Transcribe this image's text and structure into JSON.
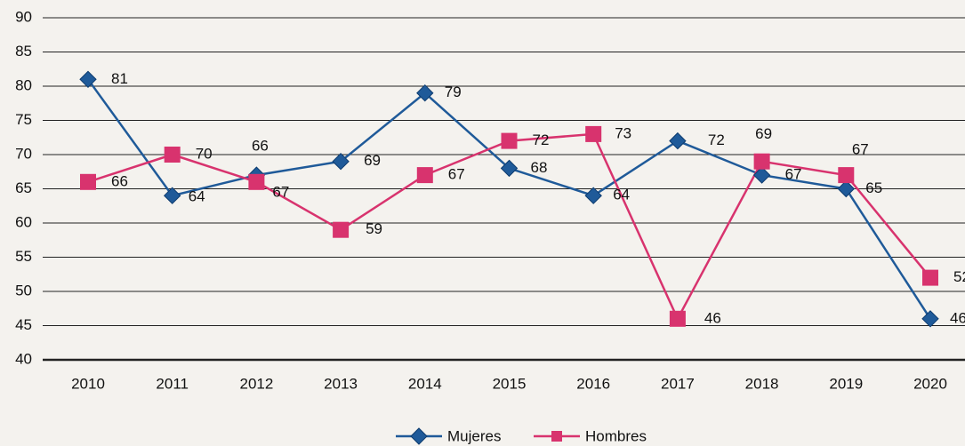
{
  "chart_data": {
    "type": "line",
    "categories": [
      "2010",
      "2011",
      "2012",
      "2013",
      "2014",
      "2015",
      "2016",
      "2017",
      "2018",
      "2019",
      "2020"
    ],
    "series": [
      {
        "name": "Mujeres",
        "color": "#1f5a99",
        "marker": "diamond",
        "values": [
          81,
          64,
          67,
          69,
          79,
          68,
          64,
          72,
          67,
          65,
          46
        ]
      },
      {
        "name": "Hombres",
        "color": "#d8336e",
        "marker": "square",
        "values": [
          66,
          70,
          66,
          59,
          67,
          72,
          73,
          46,
          69,
          67,
          52
        ]
      }
    ],
    "ylim": [
      40,
      90
    ],
    "yticks": [
      40,
      45,
      50,
      55,
      60,
      65,
      70,
      75,
      80,
      85,
      90
    ],
    "grid": true,
    "legend": "bottom"
  }
}
